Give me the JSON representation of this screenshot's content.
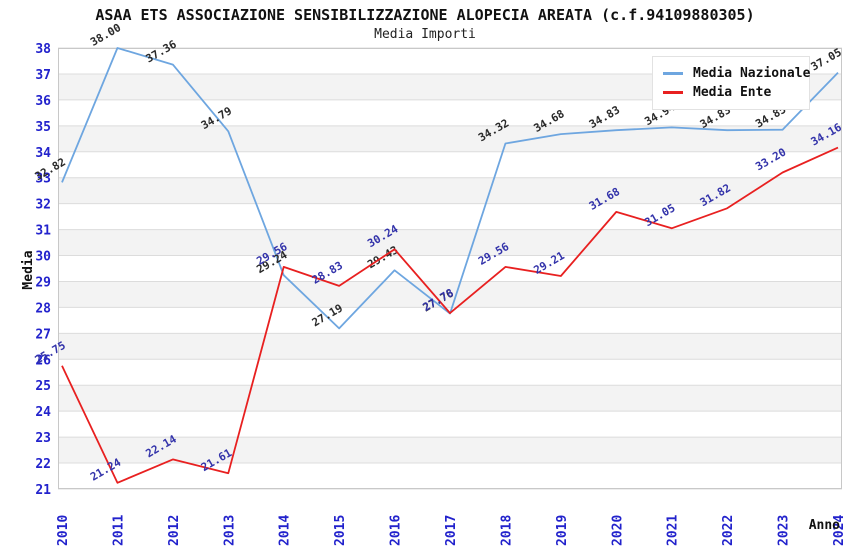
{
  "title": "ASAA ETS ASSOCIAZIONE SENSIBILIZZAZIONE ALOPECIA AREATA (c.f.94109880305)",
  "subtitle": "Media Importi",
  "chart_data": {
    "type": "line",
    "x": [
      "2010",
      "2011",
      "2012",
      "2013",
      "2014",
      "2015",
      "2016",
      "2017",
      "2018",
      "2019",
      "2020",
      "2021",
      "2022",
      "2023",
      "2024"
    ],
    "series": [
      {
        "name": "Media Nazionale",
        "color": "#6EA6E0",
        "label_color": "#2A2A2A",
        "values": [
          32.82,
          38.0,
          37.36,
          34.79,
          29.24,
          27.19,
          29.43,
          27.76,
          34.32,
          34.68,
          34.83,
          34.94,
          34.83,
          34.85,
          37.05
        ]
      },
      {
        "name": "Media Ente",
        "color": "#E82020",
        "label_color": "#3333AA",
        "values": [
          25.75,
          21.24,
          22.14,
          21.61,
          29.56,
          28.83,
          30.24,
          27.78,
          29.56,
          29.21,
          31.68,
          31.05,
          31.82,
          33.2,
          34.16
        ]
      }
    ],
    "xlabel": "Anno",
    "ylabel": "Media",
    "ylim": [
      21,
      38
    ],
    "y_tick_step": 1,
    "legend_position": "top-right",
    "grid": "horizontal gridlines with alternating shaded bands"
  },
  "colors": {
    "tick_label": "#2222CC",
    "grid_line": "#DCDCDC",
    "band_fill": "#F3F3F3",
    "plot_border": "#C8C8C8",
    "axis_title": "#111111"
  }
}
